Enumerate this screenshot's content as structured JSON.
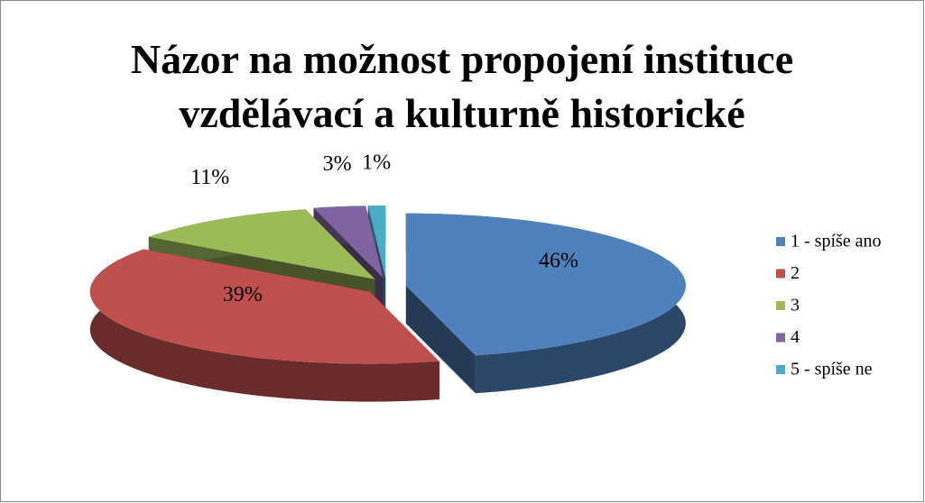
{
  "chart_data": {
    "type": "pie",
    "title": "Názor na možnost propojení instituce vzdělávací a kulturně historické",
    "categories": [
      "1 - spíše ano",
      "2",
      "3",
      "4",
      "5 - spíše ne"
    ],
    "values": [
      46,
      39,
      11,
      3,
      1
    ],
    "value_labels": [
      "46%",
      "39%",
      "11%",
      "3%",
      "1%"
    ],
    "colors": [
      "#4f81bd",
      "#c0504d",
      "#9bbb59",
      "#8064a2",
      "#4bacc6"
    ],
    "legend": "right"
  }
}
